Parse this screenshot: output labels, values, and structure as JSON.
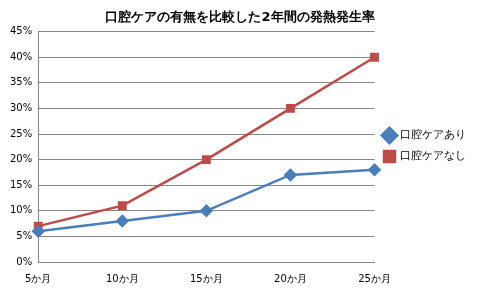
{
  "chart_data": {
    "type": "line",
    "title": "口腔ケアの有無を比較した2年間の発熱発生率",
    "categories": [
      "5か月",
      "10か月",
      "15か月",
      "20か月",
      "25か月"
    ],
    "series": [
      {
        "name": "口腔ケアあり",
        "color": "#4a7ebb",
        "marker": "diamond",
        "values": [
          6,
          8,
          10,
          17,
          18
        ]
      },
      {
        "name": "口腔ケアなし",
        "color": "#be4b48",
        "marker": "square",
        "values": [
          7,
          11,
          20,
          30,
          40
        ]
      }
    ],
    "ylim": [
      0,
      45
    ],
    "yticks": [
      {
        "value": 0,
        "label": "0%"
      },
      {
        "value": 5,
        "label": "5%"
      },
      {
        "value": 10,
        "label": "10%"
      },
      {
        "value": 15,
        "label": "15%"
      },
      {
        "value": 20,
        "label": "20%"
      },
      {
        "value": 25,
        "label": "25%"
      },
      {
        "value": 30,
        "label": "30%"
      },
      {
        "value": 35,
        "label": "35%"
      },
      {
        "value": 40,
        "label": "40%"
      },
      {
        "value": 45,
        "label": "45%"
      }
    ],
    "grid": true,
    "legend": "right"
  }
}
